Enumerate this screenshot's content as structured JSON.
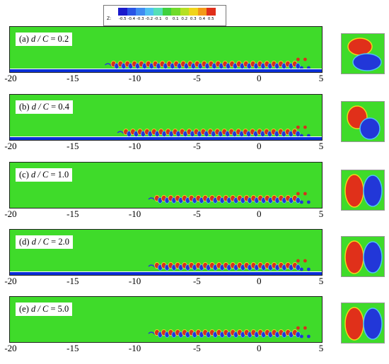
{
  "figure": {
    "colorbar": {
      "title": "Z:",
      "ticks": [
        "-0.5",
        "-0.4",
        "-0.3",
        "-0.2",
        "-0.1",
        "0",
        "0.1",
        "0.2",
        "0.3",
        "0.4",
        "0.5"
      ],
      "colors": [
        "#1a1acc",
        "#2a55e6",
        "#3f8cf2",
        "#4fc1f2",
        "#55dfb8",
        "#3ed13e",
        "#6fdb2b",
        "#b5e021",
        "#f0d41a",
        "#f39a17",
        "#e0301a"
      ]
    },
    "field_color": "#3fdb2a",
    "wall_color": "#0a2fd8",
    "x_axis_ticks": [
      "-20",
      "-15",
      "-10",
      "-5",
      "0",
      "5"
    ],
    "panels": [
      {
        "id": "a",
        "prefix": "(a) ",
        "ratio": "d / C",
        "suffix": " = 0.2",
        "wake_start": -12
      },
      {
        "id": "b",
        "prefix": "(b) ",
        "ratio": "d / C",
        "suffix": " = 0.4",
        "wake_start": -11
      },
      {
        "id": "c",
        "prefix": "(c) ",
        "ratio": "d / C",
        "suffix": " = 1.0",
        "wake_start": -8.5
      },
      {
        "id": "d",
        "prefix": "(d) ",
        "ratio": "d / C",
        "suffix": " = 2.0",
        "wake_start": -8.5
      },
      {
        "id": "e",
        "prefix": "(e) ",
        "ratio": "d / C",
        "suffix": " = 5.0",
        "wake_start": -8.5
      }
    ]
  }
}
